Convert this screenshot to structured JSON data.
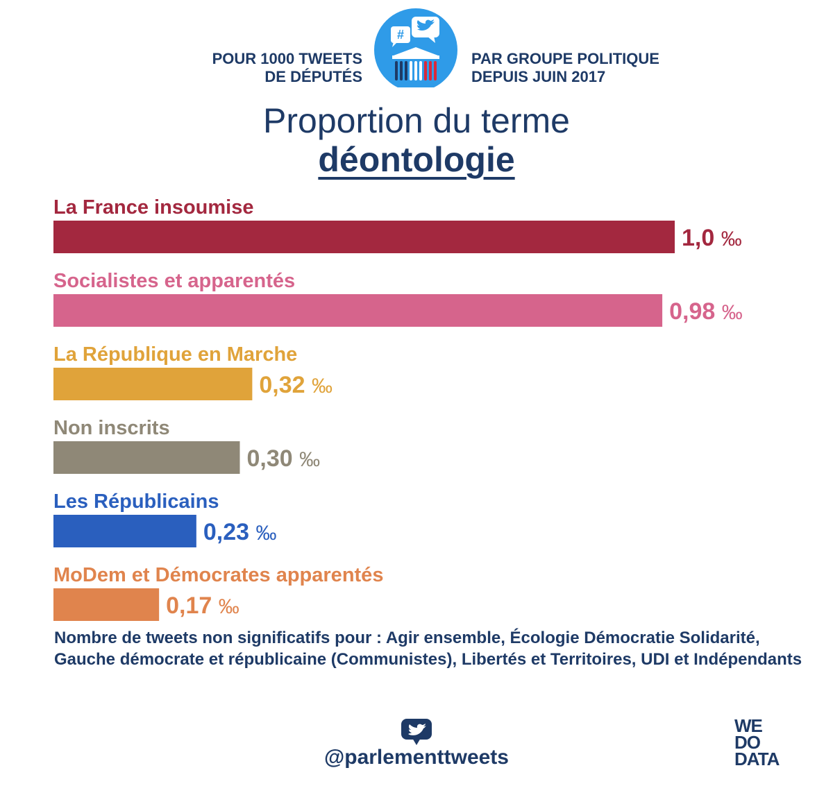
{
  "header": {
    "left_line1": "POUR 1000 TWEETS",
    "left_line2": "DE DÉPUTÉS",
    "right_line1": "PAR GROUPE POLITIQUE",
    "right_line2": "DEPUIS JUIN 2017",
    "logo_hash": "#"
  },
  "title": {
    "line1": "Proportion du terme",
    "line2": "déontologie"
  },
  "chart_data": {
    "type": "bar",
    "orientation": "horizontal",
    "categories": [
      "La France insoumise",
      "Socialistes et apparentés",
      "La République en Marche",
      "Non inscrits",
      "Les Républicains",
      "MoDem et Démocrates apparentés"
    ],
    "values": [
      1.0,
      0.98,
      0.32,
      0.3,
      0.23,
      0.17
    ],
    "value_labels": [
      "1,0",
      "0,98",
      "0,32",
      "0,30",
      "0,23",
      "0,17"
    ],
    "unit": "‰",
    "colors": [
      "#a3283f",
      "#d6648c",
      "#e0a33a",
      "#8f8877",
      "#2a5fbe",
      "#e0844d"
    ],
    "xlim": [
      0,
      1.0
    ],
    "grid": false,
    "legend": "none"
  },
  "note": "Nombre de tweets non significatifs pour : Agir ensemble, Écologie Démocratie Solidarité, Gauche démocrate et républicaine (Communistes), Libertés et Territoires, UDI et Indépendants",
  "footer": {
    "handle": "@parlementtweets",
    "brand_line1": "WE",
    "brand_line2": "DO",
    "brand_line3": "DATA",
    "twitter_icon": "twitter-bird-icon"
  },
  "colors": {
    "navy": "#1e3a66",
    "twitter_blue": "#2f9be8"
  }
}
